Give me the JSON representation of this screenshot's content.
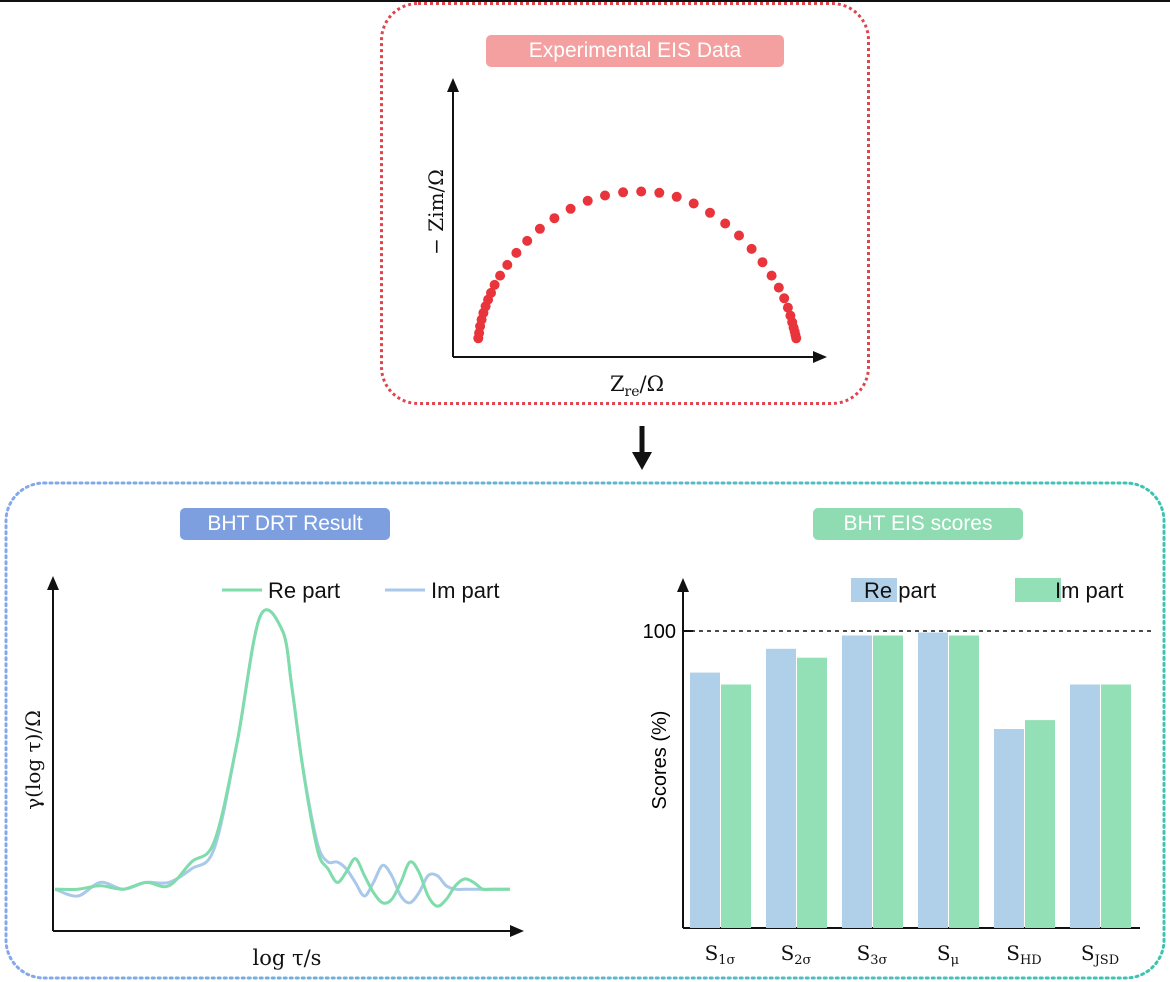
{
  "eis_panel": {
    "title": "Experimental EIS Data",
    "ylabel": "− Zim/Ω",
    "xlabel_main": "Z",
    "xlabel_sub": "re",
    "xlabel_unit": "/Ω",
    "marker_color": "#e8343a"
  },
  "drt_panel": {
    "title": "BHT DRT Result",
    "ylabel": "γ(log τ)/Ω",
    "xlabel": "log τ/s",
    "legend": [
      {
        "label": "Re part",
        "color": "#7fdcab"
      },
      {
        "label": "Im part",
        "color": "#a9c8ea"
      }
    ]
  },
  "scores_panel": {
    "title": "BHT EIS scores",
    "ylabel": "Scores (%)",
    "ref_tick": "100",
    "legend": [
      {
        "label": "Re part",
        "color": "#b0d0ea"
      },
      {
        "label": "Im part",
        "color": "#93e0b6"
      }
    ]
  },
  "chart_data": [
    {
      "type": "scatter",
      "title": "Experimental EIS Data",
      "xlabel": "Zre/Ω",
      "ylabel": "− Zim/Ω",
      "xlim": [
        0,
        1
      ],
      "ylim": [
        0,
        1
      ],
      "series": [
        {
          "name": "EIS",
          "shape": "semicircle",
          "x": [
            0.07,
            0.072,
            0.075,
            0.079,
            0.084,
            0.09,
            0.097,
            0.105,
            0.115,
            0.13,
            0.15,
            0.175,
            0.205,
            0.24,
            0.28,
            0.325,
            0.372,
            0.42,
            0.47,
            0.52,
            0.57,
            0.618,
            0.665,
            0.71,
            0.752,
            0.79,
            0.825,
            0.855,
            0.88,
            0.9,
            0.915,
            0.925,
            0.932,
            0.937,
            0.941,
            0.944,
            0.946,
            0.948
          ],
          "y": [
            0.07,
            0.09,
            0.115,
            0.14,
            0.165,
            0.19,
            0.215,
            0.24,
            0.27,
            0.305,
            0.345,
            0.39,
            0.435,
            0.48,
            0.52,
            0.555,
            0.585,
            0.605,
            0.617,
            0.62,
            0.615,
            0.6,
            0.575,
            0.54,
            0.5,
            0.455,
            0.405,
            0.355,
            0.305,
            0.26,
            0.22,
            0.185,
            0.155,
            0.13,
            0.11,
            0.095,
            0.082,
            0.07
          ]
        }
      ]
    },
    {
      "type": "line",
      "title": "BHT DRT Result",
      "xlabel": "log τ/s",
      "ylabel": "γ(log τ)/Ω",
      "xlim": [
        0,
        1
      ],
      "ylim": [
        0,
        1
      ],
      "series": [
        {
          "name": "Re part",
          "x": [
            0.0,
            0.05,
            0.1,
            0.15,
            0.2,
            0.25,
            0.3,
            0.35,
            0.4,
            0.45,
            0.5,
            0.52,
            0.54,
            0.56,
            0.58,
            0.6,
            0.62,
            0.64,
            0.66,
            0.68,
            0.7,
            0.72,
            0.74,
            0.76,
            0.78,
            0.8,
            0.82,
            0.84,
            0.86,
            0.88,
            0.9,
            0.92,
            0.94,
            0.96,
            1.0
          ],
          "y": [
            0.12,
            0.12,
            0.13,
            0.12,
            0.14,
            0.13,
            0.2,
            0.26,
            0.55,
            0.92,
            0.88,
            0.72,
            0.52,
            0.35,
            0.22,
            0.18,
            0.14,
            0.17,
            0.21,
            0.16,
            0.11,
            0.08,
            0.09,
            0.14,
            0.2,
            0.17,
            0.1,
            0.07,
            0.09,
            0.13,
            0.15,
            0.14,
            0.12,
            0.12,
            0.12
          ]
        },
        {
          "name": "Im part",
          "x": [
            0.0,
            0.05,
            0.1,
            0.15,
            0.2,
            0.25,
            0.3,
            0.35,
            0.4,
            0.45,
            0.5,
            0.52,
            0.54,
            0.56,
            0.58,
            0.6,
            0.62,
            0.64,
            0.66,
            0.68,
            0.7,
            0.72,
            0.74,
            0.76,
            0.78,
            0.8,
            0.82,
            0.84,
            0.86,
            0.88,
            0.9,
            0.92,
            0.94,
            0.96,
            1.0
          ],
          "y": [
            0.12,
            0.1,
            0.14,
            0.12,
            0.14,
            0.14,
            0.18,
            0.24,
            0.55,
            0.92,
            0.88,
            0.72,
            0.52,
            0.36,
            0.24,
            0.2,
            0.2,
            0.18,
            0.14,
            0.1,
            0.14,
            0.19,
            0.16,
            0.1,
            0.08,
            0.11,
            0.16,
            0.16,
            0.13,
            0.12,
            0.12,
            0.12,
            0.12,
            0.12,
            0.12
          ]
        }
      ]
    },
    {
      "type": "bar",
      "title": "BHT EIS scores",
      "xlabel": "",
      "ylabel": "Scores (%)",
      "ylim": [
        0,
        115
      ],
      "categories": [
        {
          "main": "S",
          "sub": "1σ"
        },
        {
          "main": "S",
          "sub": "2σ"
        },
        {
          "main": "S",
          "sub": "3σ"
        },
        {
          "main": "S",
          "sub": "μ"
        },
        {
          "main": "S",
          "sub": "HD"
        },
        {
          "main": "S",
          "sub": "JSD"
        }
      ],
      "series": [
        {
          "name": "Re part",
          "values": [
            86,
            94,
            98.5,
            99.5,
            67,
            82
          ]
        },
        {
          "name": "Im part",
          "values": [
            82,
            91,
            98.5,
            98.5,
            70,
            82
          ]
        }
      ],
      "reference_line": 100
    }
  ]
}
